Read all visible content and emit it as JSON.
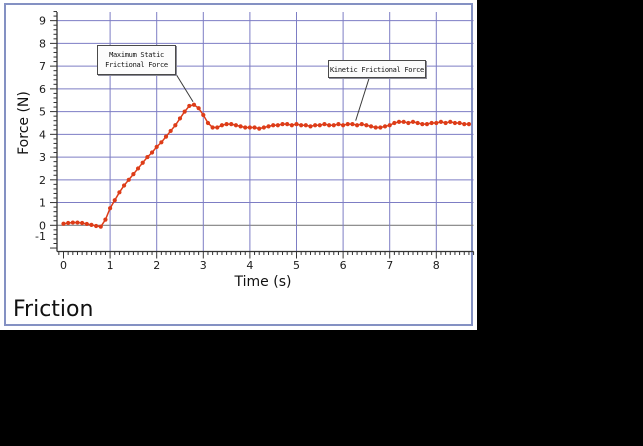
{
  "window": {
    "kind": "logger-pro-graph-window"
  },
  "chart_data": {
    "type": "scatter",
    "title": "Friction",
    "xlabel": "Time (s)",
    "ylabel": "Force (N)",
    "xlim": [
      -0.14,
      8.8
    ],
    "ylim": [
      -1.15,
      9.4
    ],
    "x_ticks": [
      0,
      1,
      2,
      3,
      4,
      5,
      6,
      7,
      8
    ],
    "y_ticks": [
      -1,
      0,
      1,
      2,
      3,
      4,
      5,
      6,
      7,
      8,
      9
    ],
    "x_minor_step": 0.1,
    "y_minor_step": 0.2,
    "x_gridlines": [
      1,
      2,
      3,
      4,
      5,
      6,
      7,
      8
    ],
    "y_gridlines": [
      1,
      2,
      3,
      4,
      5,
      6,
      7,
      8,
      9
    ],
    "zero_line": 0,
    "grid": true,
    "legend": "none",
    "colors": {
      "series": "#dd3c18",
      "grid": "#7d7dc4",
      "zero_line": "#808080",
      "axis": "#333333",
      "tick_label": "#1a1a1a",
      "panel_border": "#8491c3"
    },
    "series": [
      {
        "name": "Force",
        "points": [
          [
            0.0,
            0.07
          ],
          [
            0.1,
            0.1
          ],
          [
            0.2,
            0.12
          ],
          [
            0.3,
            0.12
          ],
          [
            0.4,
            0.1
          ],
          [
            0.5,
            0.06
          ],
          [
            0.6,
            0.02
          ],
          [
            0.7,
            -0.03
          ],
          [
            0.8,
            -0.06
          ],
          [
            0.9,
            0.25
          ],
          [
            1.0,
            0.75
          ],
          [
            1.1,
            1.1
          ],
          [
            1.2,
            1.45
          ],
          [
            1.3,
            1.75
          ],
          [
            1.4,
            2.0
          ],
          [
            1.5,
            2.25
          ],
          [
            1.6,
            2.5
          ],
          [
            1.7,
            2.75
          ],
          [
            1.8,
            3.0
          ],
          [
            1.9,
            3.2
          ],
          [
            2.0,
            3.45
          ],
          [
            2.1,
            3.65
          ],
          [
            2.2,
            3.9
          ],
          [
            2.3,
            4.15
          ],
          [
            2.4,
            4.4
          ],
          [
            2.5,
            4.7
          ],
          [
            2.6,
            5.0
          ],
          [
            2.7,
            5.25
          ],
          [
            2.8,
            5.3
          ],
          [
            2.9,
            5.15
          ],
          [
            3.0,
            4.85
          ],
          [
            3.1,
            4.5
          ],
          [
            3.2,
            4.3
          ],
          [
            3.3,
            4.3
          ],
          [
            3.4,
            4.4
          ],
          [
            3.5,
            4.45
          ],
          [
            3.6,
            4.45
          ],
          [
            3.7,
            4.4
          ],
          [
            3.8,
            4.35
          ],
          [
            3.9,
            4.3
          ],
          [
            4.0,
            4.3
          ],
          [
            4.1,
            4.3
          ],
          [
            4.2,
            4.25
          ],
          [
            4.3,
            4.3
          ],
          [
            4.4,
            4.35
          ],
          [
            4.5,
            4.4
          ],
          [
            4.6,
            4.4
          ],
          [
            4.7,
            4.45
          ],
          [
            4.8,
            4.45
          ],
          [
            4.9,
            4.4
          ],
          [
            5.0,
            4.45
          ],
          [
            5.1,
            4.4
          ],
          [
            5.2,
            4.4
          ],
          [
            5.3,
            4.35
          ],
          [
            5.4,
            4.4
          ],
          [
            5.5,
            4.4
          ],
          [
            5.6,
            4.45
          ],
          [
            5.7,
            4.4
          ],
          [
            5.8,
            4.4
          ],
          [
            5.9,
            4.45
          ],
          [
            6.0,
            4.4
          ],
          [
            6.1,
            4.45
          ],
          [
            6.2,
            4.45
          ],
          [
            6.3,
            4.4
          ],
          [
            6.4,
            4.45
          ],
          [
            6.5,
            4.4
          ],
          [
            6.6,
            4.35
          ],
          [
            6.7,
            4.3
          ],
          [
            6.8,
            4.3
          ],
          [
            6.9,
            4.35
          ],
          [
            7.0,
            4.4
          ],
          [
            7.1,
            4.5
          ],
          [
            7.2,
            4.55
          ],
          [
            7.3,
            4.55
          ],
          [
            7.4,
            4.5
          ],
          [
            7.5,
            4.55
          ],
          [
            7.6,
            4.5
          ],
          [
            7.7,
            4.45
          ],
          [
            7.8,
            4.45
          ],
          [
            7.9,
            4.5
          ],
          [
            8.0,
            4.5
          ],
          [
            8.1,
            4.55
          ],
          [
            8.2,
            4.5
          ],
          [
            8.3,
            4.55
          ],
          [
            8.4,
            4.5
          ],
          [
            8.5,
            4.5
          ],
          [
            8.6,
            4.45
          ],
          [
            8.7,
            4.45
          ]
        ]
      }
    ],
    "annotations": [
      {
        "lines": [
          "Maximum Static",
          "Frictional Force"
        ],
        "anchor": {
          "t": 2.78,
          "f": 5.28
        }
      },
      {
        "lines": [
          "Kinetic Frictional Force"
        ],
        "anchor": {
          "t": 6.27,
          "f": 4.45
        }
      }
    ]
  }
}
